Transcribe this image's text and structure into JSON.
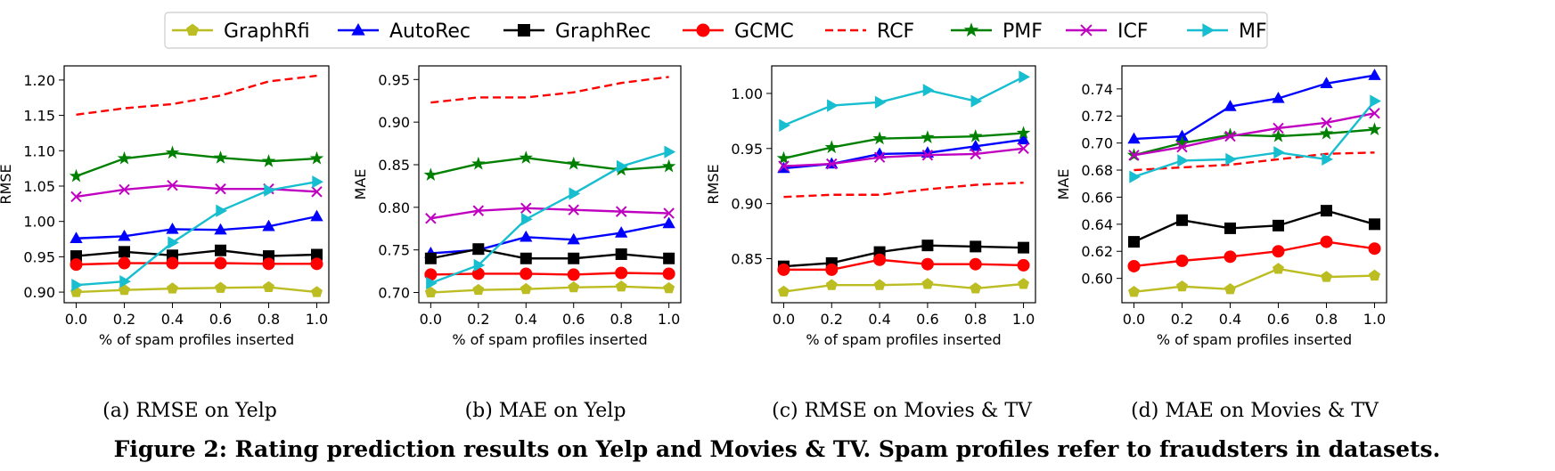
{
  "figure": {
    "caption": "Figure 2: Rating prediction results on Yelp and Movies & TV. Spam profiles refer to fraudsters in datasets."
  },
  "legend": {
    "placement": "top-center",
    "entries": [
      {
        "name": "GraphRfi",
        "color": "#bcbd22",
        "marker": "pentagon",
        "dash": "solid"
      },
      {
        "name": "AutoRec",
        "color": "#0000ff",
        "marker": "triangle-up",
        "dash": "solid"
      },
      {
        "name": "GraphRec",
        "color": "#000000",
        "marker": "square",
        "dash": "solid"
      },
      {
        "name": "GCMC",
        "color": "#ff0000",
        "marker": "circle",
        "dash": "solid"
      },
      {
        "name": "RCF",
        "color": "#ff0000",
        "marker": "none",
        "dash": "dashed"
      },
      {
        "name": "PMF",
        "color": "#008000",
        "marker": "star",
        "dash": "solid"
      },
      {
        "name": "ICF",
        "color": "#c000c0",
        "marker": "x",
        "dash": "solid"
      },
      {
        "name": "MF",
        "color": "#17becf",
        "marker": "triangle-right",
        "dash": "solid"
      }
    ]
  },
  "chart_data": [
    {
      "type": "line",
      "subcaption": "(a) RMSE on Yelp",
      "xlabel": "% of spam profiles inserted",
      "ylabel": "RMSE",
      "x": [
        0.0,
        0.2,
        0.4,
        0.6,
        0.8,
        1.0
      ],
      "xticks": [
        "0.0",
        "0.2",
        "0.4",
        "0.6",
        "0.8",
        "1.0"
      ],
      "yticks": [
        0.9,
        0.95,
        1.0,
        1.05,
        1.1,
        1.15,
        1.2
      ],
      "ytick_labels": [
        "0.90",
        "0.95",
        "1.00",
        "1.05",
        "1.10",
        "1.15",
        "1.20"
      ],
      "xlim": [
        -0.05,
        1.05
      ],
      "ylim": [
        0.885,
        1.22
      ],
      "grid": false,
      "series": [
        {
          "name": "GraphRfi",
          "values": [
            0.9,
            0.903,
            0.905,
            0.906,
            0.907,
            0.9
          ]
        },
        {
          "name": "AutoRec",
          "values": [
            0.976,
            0.979,
            0.989,
            0.988,
            0.993,
            1.007
          ]
        },
        {
          "name": "GraphRec",
          "values": [
            0.951,
            0.957,
            0.952,
            0.959,
            0.951,
            0.953
          ]
        },
        {
          "name": "GCMC",
          "values": [
            0.939,
            0.941,
            0.941,
            0.941,
            0.94,
            0.94
          ]
        },
        {
          "name": "RCF",
          "values": [
            1.151,
            1.16,
            1.166,
            1.178,
            1.198,
            1.206
          ]
        },
        {
          "name": "PMF",
          "values": [
            1.064,
            1.089,
            1.097,
            1.09,
            1.085,
            1.089
          ]
        },
        {
          "name": "ICF",
          "values": [
            1.035,
            1.045,
            1.051,
            1.046,
            1.046,
            1.042
          ]
        },
        {
          "name": "MF",
          "values": [
            0.91,
            0.915,
            0.97,
            1.015,
            1.044,
            1.056
          ]
        }
      ]
    },
    {
      "type": "line",
      "subcaption": "(b) MAE on Yelp",
      "xlabel": "% of spam profiles inserted",
      "ylabel": "MAE",
      "x": [
        0.0,
        0.2,
        0.4,
        0.6,
        0.8,
        1.0
      ],
      "xticks": [
        "0.0",
        "0.2",
        "0.4",
        "0.6",
        "0.8",
        "1.0"
      ],
      "yticks": [
        0.7,
        0.75,
        0.8,
        0.85,
        0.9,
        0.95
      ],
      "ytick_labels": [
        "0.70",
        "0.75",
        "0.80",
        "0.85",
        "0.90",
        "0.95"
      ],
      "xlim": [
        -0.05,
        1.05
      ],
      "ylim": [
        0.688,
        0.966
      ],
      "grid": false,
      "series": [
        {
          "name": "GraphRfi",
          "values": [
            0.7,
            0.703,
            0.704,
            0.706,
            0.707,
            0.705
          ]
        },
        {
          "name": "AutoRec",
          "values": [
            0.746,
            0.75,
            0.765,
            0.762,
            0.77,
            0.781
          ]
        },
        {
          "name": "GraphRec",
          "values": [
            0.74,
            0.751,
            0.74,
            0.74,
            0.745,
            0.74
          ]
        },
        {
          "name": "GCMC",
          "values": [
            0.721,
            0.722,
            0.722,
            0.721,
            0.723,
            0.722
          ]
        },
        {
          "name": "RCF",
          "values": [
            0.923,
            0.929,
            0.929,
            0.935,
            0.946,
            0.953
          ]
        },
        {
          "name": "PMF",
          "values": [
            0.838,
            0.851,
            0.858,
            0.851,
            0.844,
            0.848
          ]
        },
        {
          "name": "ICF",
          "values": [
            0.787,
            0.796,
            0.799,
            0.797,
            0.795,
            0.793
          ]
        },
        {
          "name": "MF",
          "values": [
            0.711,
            0.732,
            0.786,
            0.816,
            0.848,
            0.865
          ]
        }
      ]
    },
    {
      "type": "line",
      "subcaption": "(c) RMSE on Movies & TV",
      "xlabel": "% of spam profiles inserted",
      "ylabel": "RMSE",
      "x": [
        0.0,
        0.2,
        0.4,
        0.6,
        0.8,
        1.0
      ],
      "xticks": [
        "0.0",
        "0.2",
        "0.4",
        "0.6",
        "0.8",
        "1.0"
      ],
      "yticks": [
        0.85,
        0.9,
        0.95,
        1.0
      ],
      "ytick_labels": [
        "0.85",
        "0.90",
        "0.95",
        "1.00"
      ],
      "xlim": [
        -0.05,
        1.05
      ],
      "ylim": [
        0.81,
        1.025
      ],
      "grid": false,
      "series": [
        {
          "name": "GraphRfi",
          "values": [
            0.82,
            0.826,
            0.826,
            0.827,
            0.823,
            0.827
          ]
        },
        {
          "name": "AutoRec",
          "values": [
            0.932,
            0.936,
            0.945,
            0.946,
            0.952,
            0.958
          ]
        },
        {
          "name": "GraphRec",
          "values": [
            0.843,
            0.846,
            0.856,
            0.862,
            0.861,
            0.86
          ]
        },
        {
          "name": "GCMC",
          "values": [
            0.84,
            0.84,
            0.849,
            0.845,
            0.845,
            0.844
          ]
        },
        {
          "name": "RCF",
          "values": [
            0.906,
            0.908,
            0.908,
            0.913,
            0.917,
            0.919
          ]
        },
        {
          "name": "PMF",
          "values": [
            0.941,
            0.951,
            0.959,
            0.96,
            0.961,
            0.964
          ]
        },
        {
          "name": "ICF",
          "values": [
            0.934,
            0.936,
            0.942,
            0.944,
            0.945,
            0.95
          ]
        },
        {
          "name": "MF",
          "values": [
            0.971,
            0.989,
            0.992,
            1.003,
            0.993,
            1.015
          ]
        }
      ]
    },
    {
      "type": "line",
      "subcaption": "(d) MAE on Movies & TV",
      "xlabel": "% of spam profiles inserted",
      "ylabel": "MAE",
      "x": [
        0.0,
        0.2,
        0.4,
        0.6,
        0.8,
        1.0
      ],
      "xticks": [
        "0.0",
        "0.2",
        "0.4",
        "0.6",
        "0.8",
        "1.0"
      ],
      "yticks": [
        0.6,
        0.62,
        0.64,
        0.66,
        0.68,
        0.7,
        0.72,
        0.74
      ],
      "ytick_labels": [
        "0.60",
        "0.62",
        "0.64",
        "0.66",
        "0.68",
        "0.70",
        "0.72",
        "0.74"
      ],
      "xlim": [
        -0.05,
        1.05
      ],
      "ylim": [
        0.582,
        0.757
      ],
      "grid": false,
      "series": [
        {
          "name": "GraphRfi",
          "values": [
            0.59,
            0.594,
            0.592,
            0.607,
            0.601,
            0.602
          ]
        },
        {
          "name": "AutoRec",
          "values": [
            0.703,
            0.705,
            0.727,
            0.733,
            0.744,
            0.75
          ]
        },
        {
          "name": "GraphRec",
          "values": [
            0.627,
            0.643,
            0.637,
            0.639,
            0.65,
            0.64
          ]
        },
        {
          "name": "GCMC",
          "values": [
            0.609,
            0.613,
            0.616,
            0.62,
            0.627,
            0.622
          ]
        },
        {
          "name": "RCF",
          "values": [
            0.68,
            0.682,
            0.684,
            0.688,
            0.692,
            0.693
          ]
        },
        {
          "name": "PMF",
          "values": [
            0.691,
            0.7,
            0.706,
            0.705,
            0.707,
            0.71
          ]
        },
        {
          "name": "ICF",
          "values": [
            0.691,
            0.697,
            0.705,
            0.711,
            0.715,
            0.722
          ]
        },
        {
          "name": "MF",
          "values": [
            0.675,
            0.687,
            0.688,
            0.693,
            0.688,
            0.731
          ]
        }
      ]
    }
  ]
}
